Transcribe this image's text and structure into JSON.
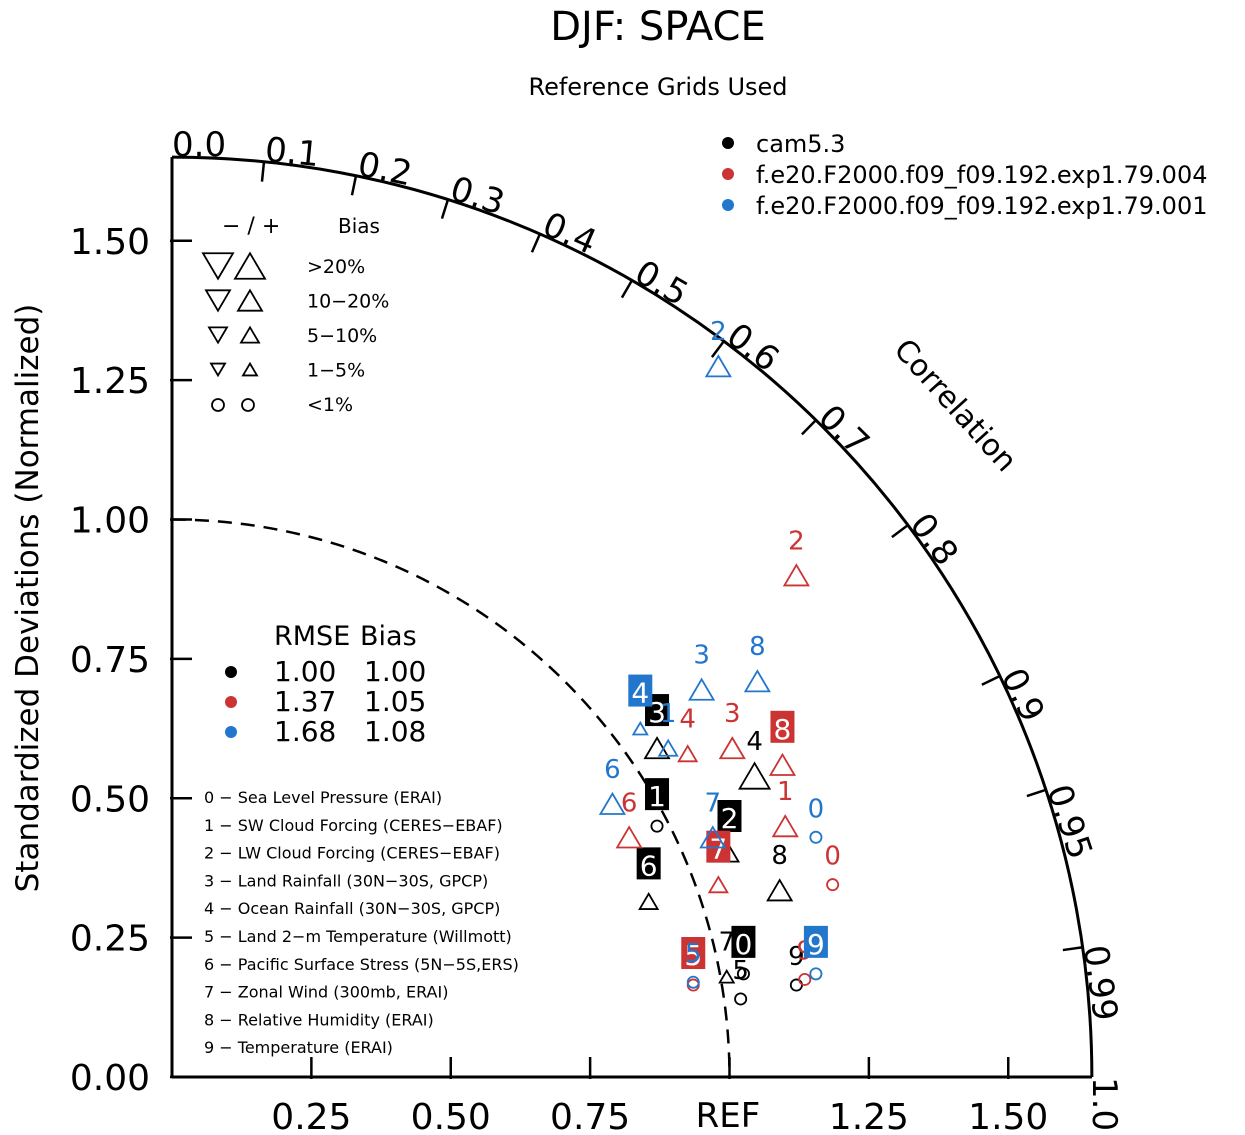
{
  "chart_data": {
    "type": "taylor",
    "title": "DJF: SPACE",
    "subtitle": "Reference Grids Used",
    "ylabel": "Standardized Deviations (Normalized)",
    "xlabel": "",
    "ref_label": "REF",
    "angular_label": "Correlation",
    "rmax": 1.65,
    "radial_ticks_y": [
      "0.00",
      "0.25",
      "0.50",
      "0.75",
      "1.00",
      "1.25",
      "1.50"
    ],
    "radial_ticks_x": [
      "0.25",
      "0.50",
      "0.75",
      "1.25",
      "1.50"
    ],
    "correlation_ticks": [
      "0.0",
      "0.1",
      "0.2",
      "0.3",
      "0.4",
      "0.5",
      "0.6",
      "0.7",
      "0.8",
      "0.9",
      "0.95",
      "0.99",
      "1.0"
    ],
    "bias_legend": {
      "header_sign": "−  /  +",
      "header_bias": "Bias",
      "rows": [
        ">20%",
        "10−20%",
        "5−10%",
        "1−5%",
        "<1%"
      ]
    },
    "model_legend": [
      {
        "name": "cam5.3",
        "color": "#000000"
      },
      {
        "name": "f.e20.F2000.f09_f09.192.exp1.79.004",
        "color": "#cc3333"
      },
      {
        "name": "f.e20.F2000.f09_f09.192.exp1.79.001",
        "color": "#2277cc"
      }
    ],
    "rmse_table": {
      "headers": [
        "RMSE",
        "Bias"
      ],
      "rows": [
        {
          "rmse": "1.00",
          "bias": "1.00",
          "color": "#000000"
        },
        {
          "rmse": "1.37",
          "bias": "1.05",
          "color": "#cc3333"
        },
        {
          "rmse": "1.68",
          "bias": "1.08",
          "color": "#2277cc"
        }
      ]
    },
    "variables": [
      "0 − Sea Level Pressure (ERAI)",
      "1 − SW Cloud Forcing (CERES−EBAF)",
      "2 − LW Cloud Forcing (CERES−EBAF)",
      "3 − Land Rainfall (30N−30S, GPCP)",
      "4 − Ocean Rainfall (30N−30S, GPCP)",
      "5 − Land 2−m Temperature (Willmott)",
      "6 − Pacific Surface Stress (5N−5S,ERS)",
      "7 − Zonal Wind (300mb, ERAI)",
      "8 − Relative Humidity (ERAI)",
      "9 − Temperature (ERAI)"
    ],
    "series": [
      {
        "name": "cam5.3",
        "color": "#000000",
        "points": [
          {
            "label": "0",
            "x": 1.025,
            "y": 0.185,
            "marker": "circle",
            "size": "s",
            "boxed": true
          },
          {
            "label": "1",
            "x": 0.87,
            "y": 0.45,
            "marker": "circle",
            "size": "s",
            "boxed": true
          },
          {
            "label": "2",
            "x": 1.0,
            "y": 0.4,
            "marker": "up",
            "size": "m",
            "boxed": true
          },
          {
            "label": "3",
            "x": 0.87,
            "y": 0.59,
            "marker": "up",
            "size": "l",
            "boxed": true
          },
          {
            "label": "4",
            "x": 1.045,
            "y": 0.54,
            "marker": "up",
            "size": "xl",
            "boxed": false
          },
          {
            "label": "5",
            "x": 1.02,
            "y": 0.14,
            "marker": "circle",
            "size": "s",
            "boxed": false
          },
          {
            "label": "6",
            "x": 0.855,
            "y": 0.315,
            "marker": "up",
            "size": "m",
            "boxed": true
          },
          {
            "label": "7",
            "x": 0.995,
            "y": 0.18,
            "marker": "up",
            "size": "s",
            "boxed": false
          },
          {
            "label": "8",
            "x": 1.09,
            "y": 0.335,
            "marker": "up",
            "size": "l",
            "boxed": false
          },
          {
            "label": "9",
            "x": 1.12,
            "y": 0.165,
            "marker": "circle",
            "size": "s",
            "boxed": false
          }
        ]
      },
      {
        "name": "f.e20.F2000.f09_f09.192.exp1.79.004",
        "color": "#cc3333",
        "points": [
          {
            "label": "0",
            "x": 1.185,
            "y": 0.345,
            "marker": "circle",
            "size": "s",
            "boxed": false
          },
          {
            "label": "1",
            "x": 1.1,
            "y": 0.45,
            "marker": "up",
            "size": "l",
            "boxed": false
          },
          {
            "label": "2",
            "x": 1.12,
            "y": 0.9,
            "marker": "up",
            "size": "l",
            "boxed": false
          },
          {
            "label": "3",
            "x": 1.005,
            "y": 0.59,
            "marker": "up",
            "size": "l",
            "boxed": false
          },
          {
            "label": "4",
            "x": 0.925,
            "y": 0.58,
            "marker": "up",
            "size": "m",
            "boxed": false
          },
          {
            "label": "5",
            "x": 0.935,
            "y": 0.165,
            "marker": "circle",
            "size": "s",
            "boxed": true
          },
          {
            "label": "6",
            "x": 0.82,
            "y": 0.43,
            "marker": "up",
            "size": "l",
            "boxed": false
          },
          {
            "label": "7",
            "x": 0.98,
            "y": 0.345,
            "marker": "up",
            "size": "m",
            "boxed": true
          },
          {
            "label": "8",
            "x": 1.095,
            "y": 0.56,
            "marker": "up",
            "size": "l",
            "boxed": true
          },
          {
            "label": "9",
            "x": 1.135,
            "y": 0.175,
            "marker": "circle",
            "size": "s",
            "boxed": false
          }
        ]
      },
      {
        "name": "f.e20.F2000.f09_f09.192.exp1.79.001",
        "color": "#2277cc",
        "points": [
          {
            "label": "0",
            "x": 1.155,
            "y": 0.43,
            "marker": "circle",
            "size": "s",
            "boxed": false
          },
          {
            "label": "1",
            "x": 0.89,
            "y": 0.59,
            "marker": "up",
            "size": "m",
            "boxed": false
          },
          {
            "label": "2",
            "x": 0.98,
            "y": 1.275,
            "marker": "up",
            "size": "l",
            "boxed": false
          },
          {
            "label": "3",
            "x": 0.95,
            "y": 0.695,
            "marker": "up",
            "size": "l",
            "boxed": false
          },
          {
            "label": "4",
            "x": 0.84,
            "y": 0.625,
            "marker": "up",
            "size": "s",
            "boxed": true
          },
          {
            "label": "5",
            "x": 0.935,
            "y": 0.17,
            "marker": "circle",
            "size": "s",
            "boxed": false
          },
          {
            "label": "6",
            "x": 0.79,
            "y": 0.49,
            "marker": "up",
            "size": "l",
            "boxed": false
          },
          {
            "label": "7",
            "x": 0.97,
            "y": 0.43,
            "marker": "up",
            "size": "l",
            "boxed": false
          },
          {
            "label": "8",
            "x": 1.05,
            "y": 0.71,
            "marker": "up",
            "size": "l",
            "boxed": false
          },
          {
            "label": "9",
            "x": 1.155,
            "y": 0.185,
            "marker": "circle",
            "size": "s",
            "boxed": true
          }
        ]
      }
    ]
  }
}
